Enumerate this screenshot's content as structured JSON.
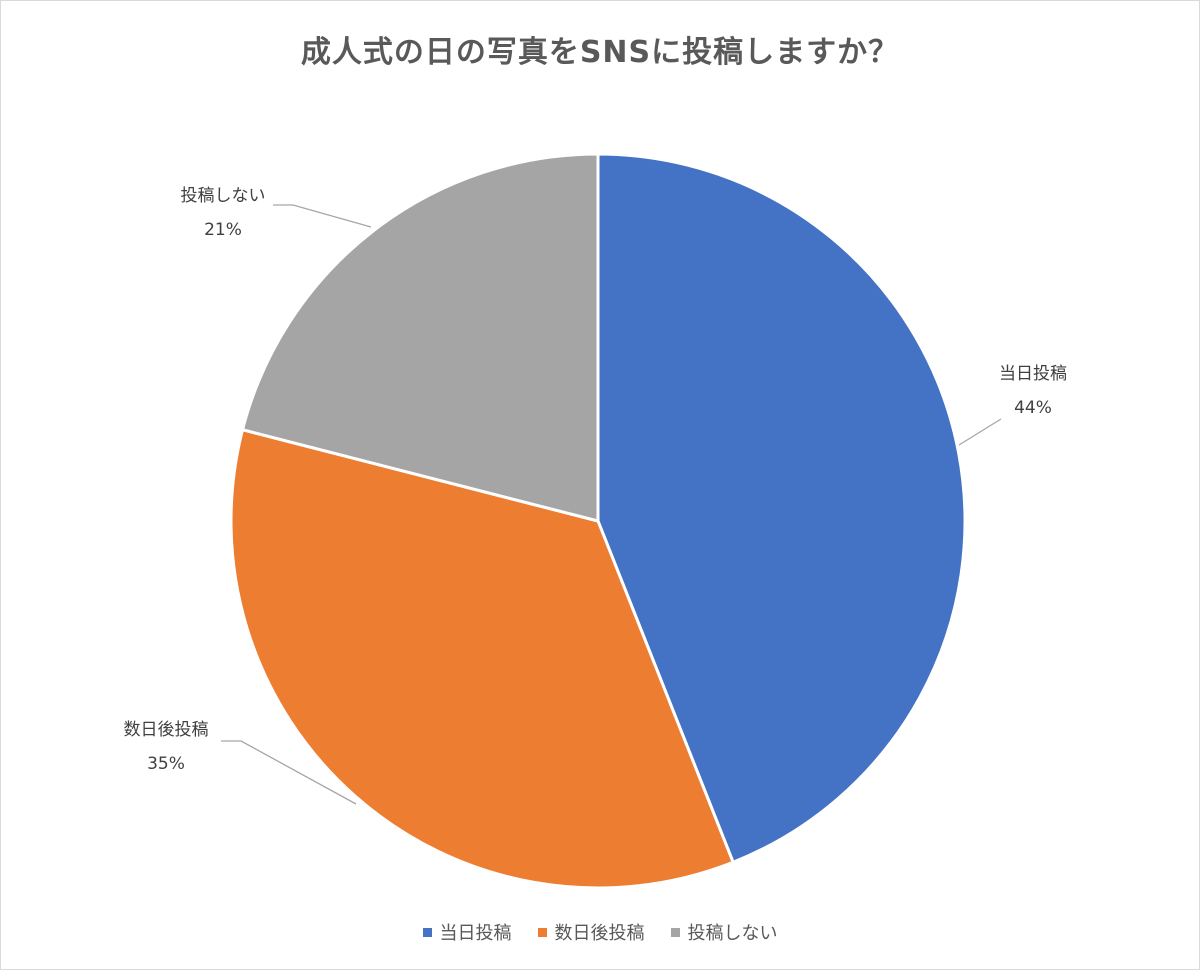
{
  "chart_data": {
    "type": "pie",
    "title": "成人式の日の写真をSNSに投稿しますか？",
    "slices": [
      {
        "label": "当日投稿",
        "value": 44,
        "value_label": "44%",
        "color": "#4472c4"
      },
      {
        "label": "数日後投稿",
        "value": 35,
        "value_label": "35%",
        "color": "#ed7d31"
      },
      {
        "label": "投稿しない",
        "value": 21,
        "value_label": "21%",
        "color": "#a5a5a5"
      }
    ],
    "start_angle": "12 o'clock",
    "direction": "clockwise",
    "legend_position": "bottom",
    "data_labels": "outside with leader lines"
  }
}
